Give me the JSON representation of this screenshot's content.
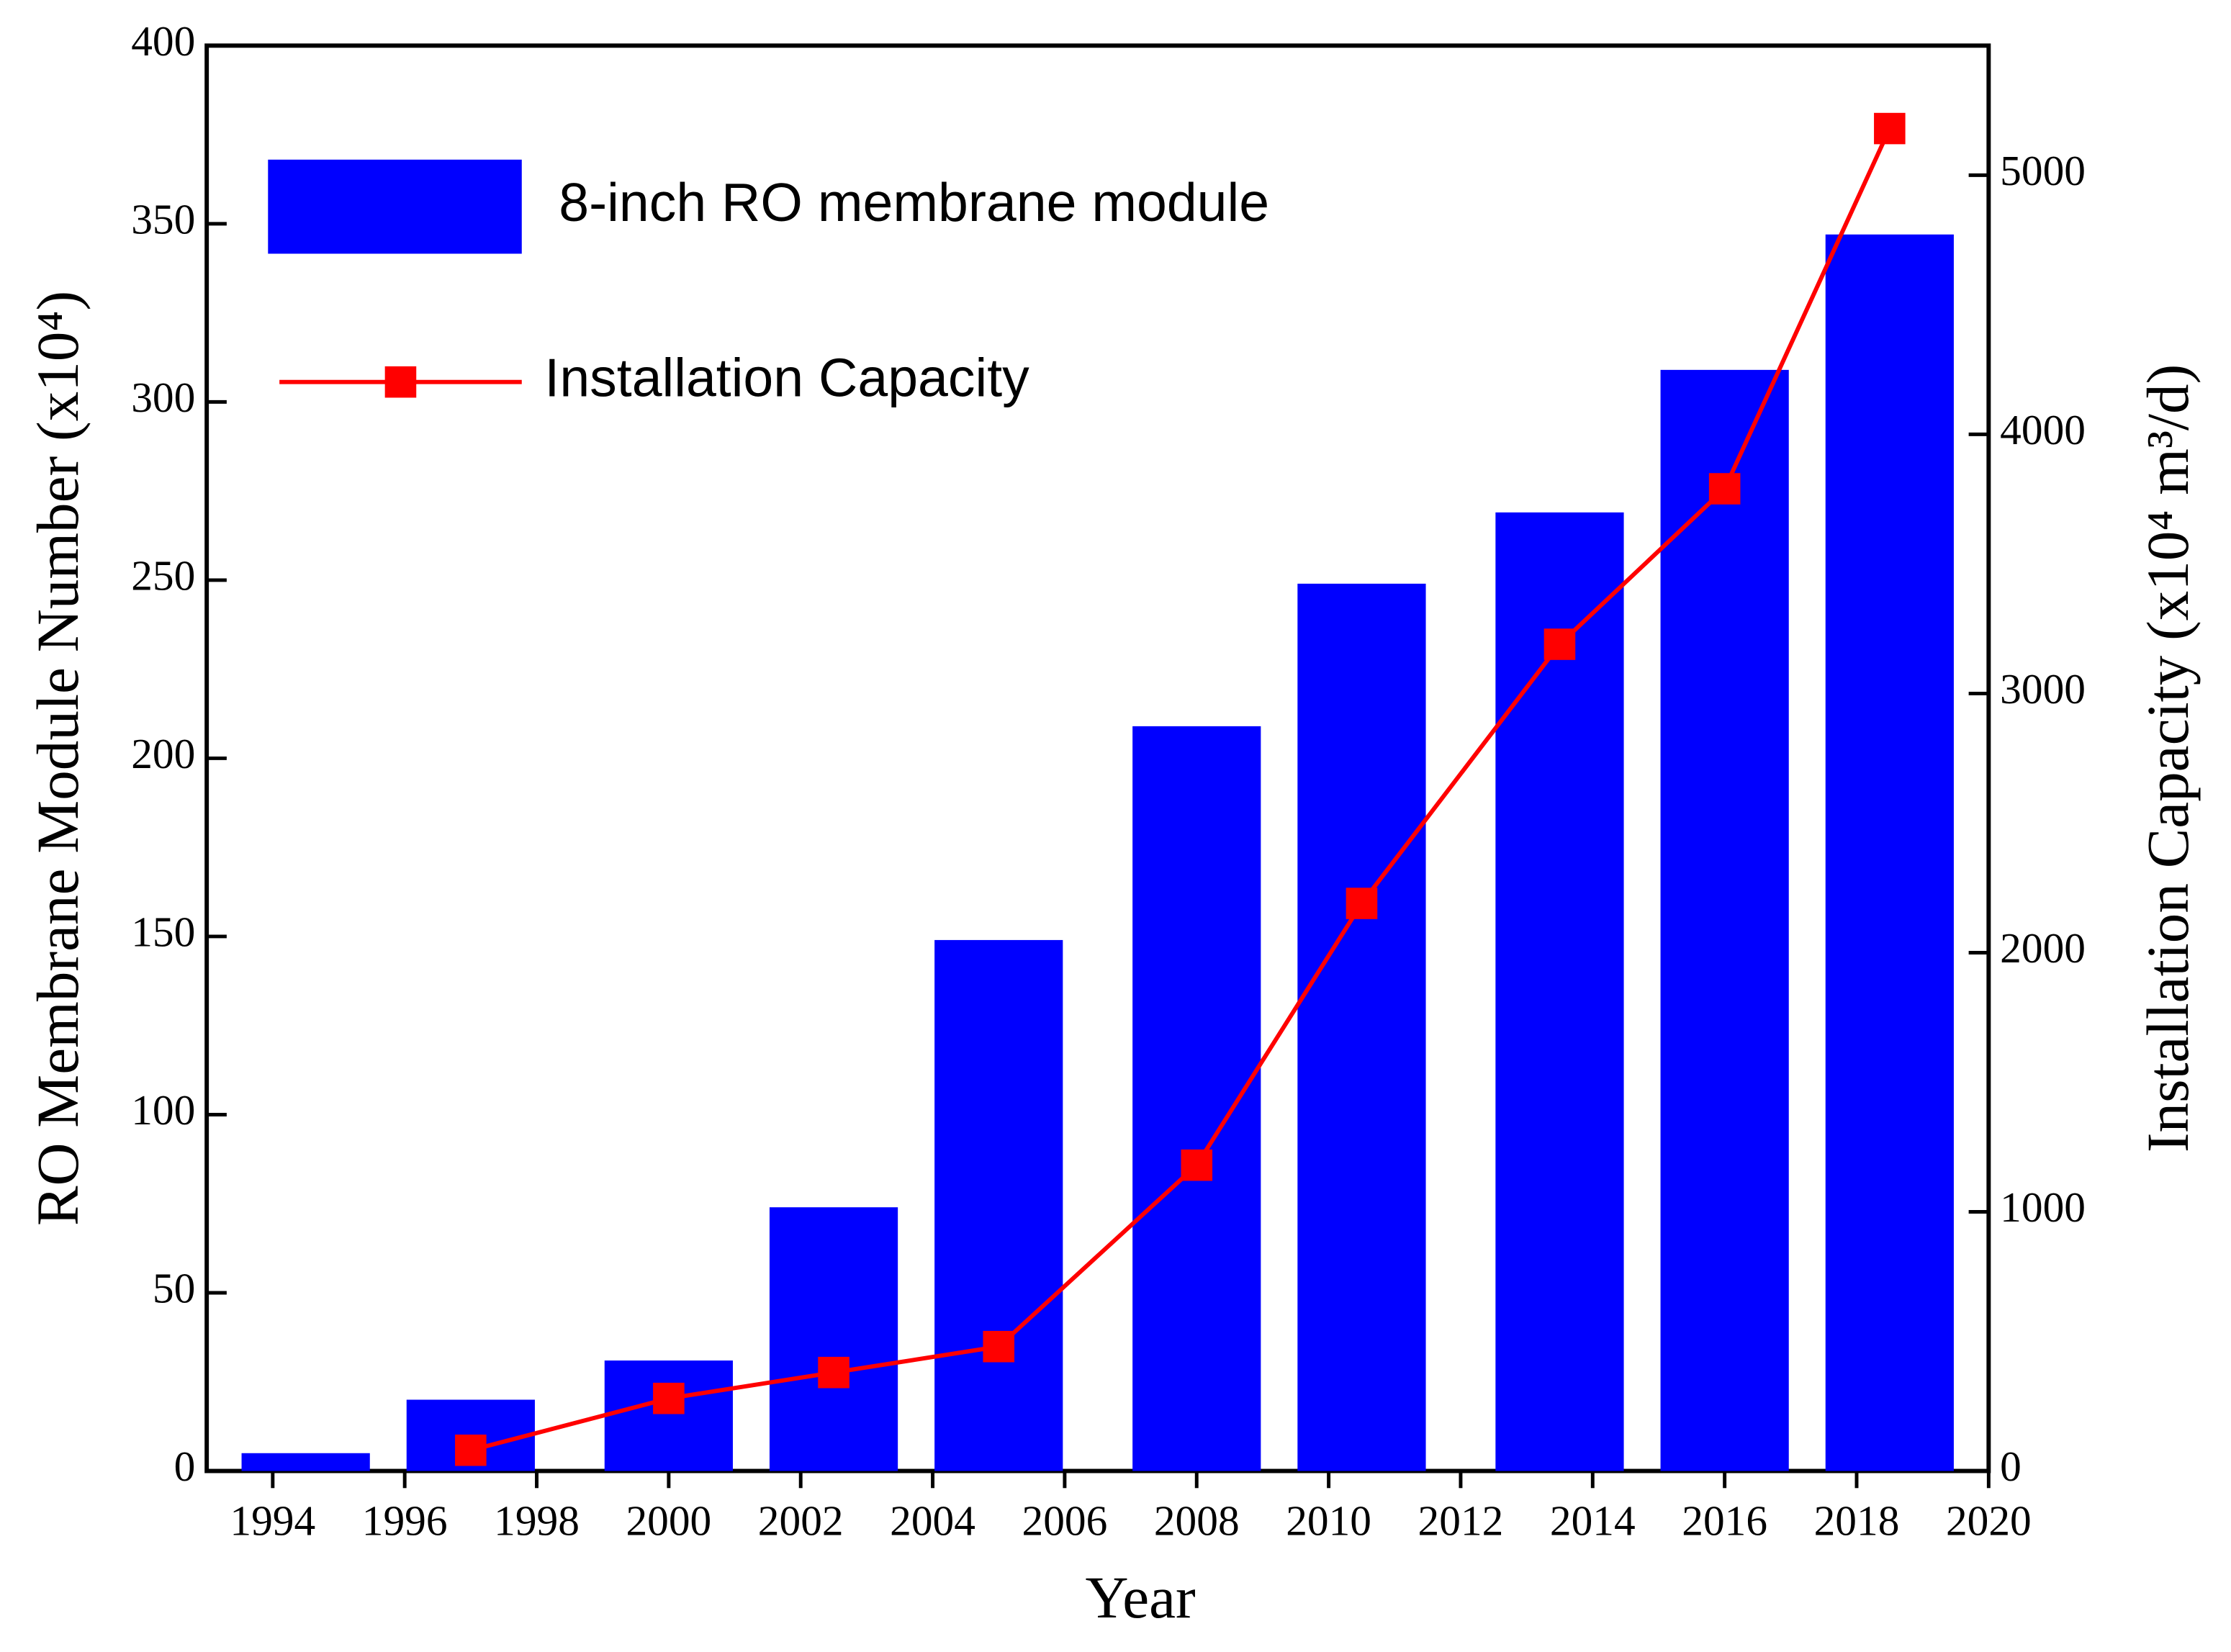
{
  "chart_data": {
    "type": "bar",
    "xlabel": "Year",
    "ylabel": "RO Membrane Module Number (x10⁴)",
    "y2label": "Installation Capacity (x10⁴ m³/d)",
    "x": [
      1994.5,
      1997,
      2000,
      2002.5,
      2005,
      2008,
      2010.5,
      2013.5,
      2016,
      2018.5
    ],
    "series": [
      {
        "name": "8-inch RO membrane module",
        "type": "bar",
        "color": "#0000ff",
        "values": [
          5,
          20,
          31,
          74,
          149,
          209,
          249,
          269,
          309,
          347
        ]
      },
      {
        "name": "Installation Capacity",
        "type": "line",
        "axis": "y2",
        "color": "#ff0000",
        "values": [
          null,
          80,
          280,
          380,
          480,
          1180,
          2190,
          3190,
          3790,
          5180
        ]
      }
    ],
    "xlim": [
      1993,
      2020
    ],
    "xticks": [
      1994,
      1996,
      1998,
      2000,
      2002,
      2004,
      2006,
      2008,
      2010,
      2012,
      2014,
      2016,
      2018,
      2020
    ],
    "ylim": [
      0,
      400
    ],
    "yticks": [
      0,
      50,
      100,
      150,
      200,
      250,
      300,
      350,
      400
    ],
    "y2lim": [
      0,
      5500
    ],
    "y2ticks": [
      0,
      1000,
      2000,
      3000,
      4000,
      5000
    ],
    "legend": "upper left"
  }
}
